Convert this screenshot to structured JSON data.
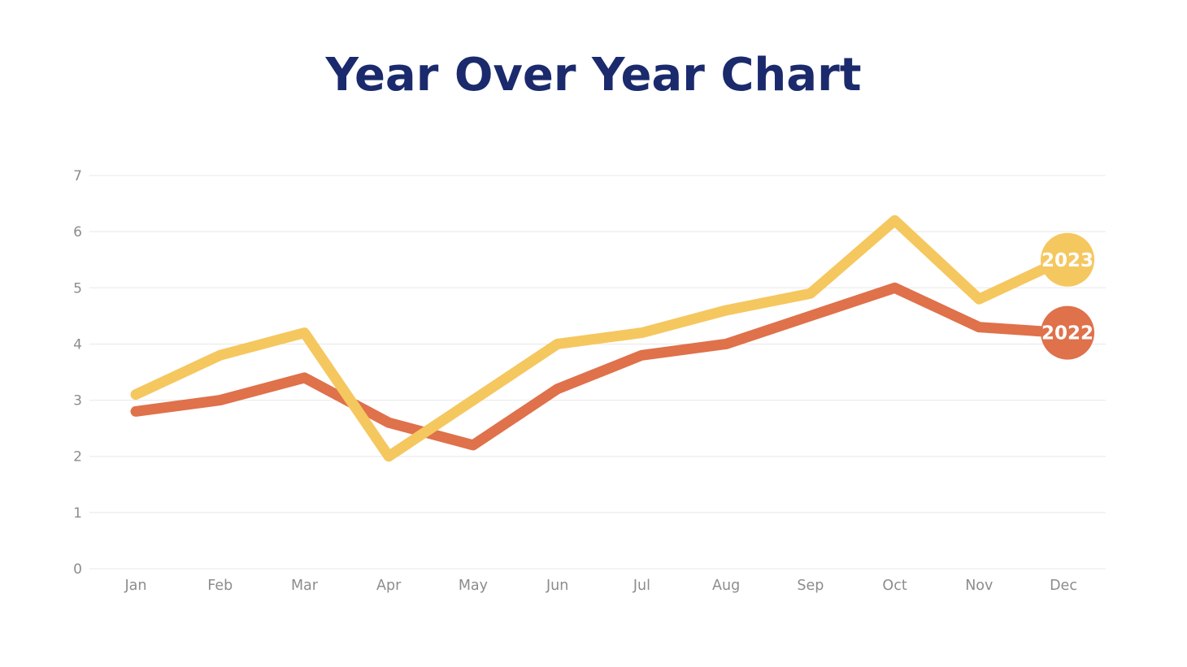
{
  "title": {
    "text": "Year Over Year Chart",
    "color": "#1a2a6c"
  },
  "chart_data": {
    "type": "line",
    "categories": [
      "Jan",
      "Feb",
      "Mar",
      "Apr",
      "May",
      "Jun",
      "Jul",
      "Aug",
      "Sep",
      "Oct",
      "Nov",
      "Dec"
    ],
    "series": [
      {
        "name": "2022",
        "color": "#df714b",
        "values": [
          2.8,
          3.0,
          3.4,
          2.6,
          2.2,
          3.2,
          3.8,
          4.0,
          4.5,
          5.0,
          4.3,
          4.2
        ]
      },
      {
        "name": "2023",
        "color": "#f5c75f",
        "values": [
          3.1,
          3.8,
          4.2,
          2.0,
          3.0,
          4.0,
          4.2,
          4.6,
          4.9,
          6.2,
          4.8,
          5.5
        ]
      }
    ],
    "xlabel": "",
    "ylabel": "",
    "ylim": [
      0,
      7
    ],
    "yticks": [
      0,
      1,
      2,
      3,
      4,
      5,
      6,
      7
    ],
    "grid": true,
    "gridline_color": "#e8e8e8",
    "axis_label_color": "#8c8c8c",
    "legend_position": "end-of-line-badges",
    "badge_text_color": "#ffffff"
  }
}
